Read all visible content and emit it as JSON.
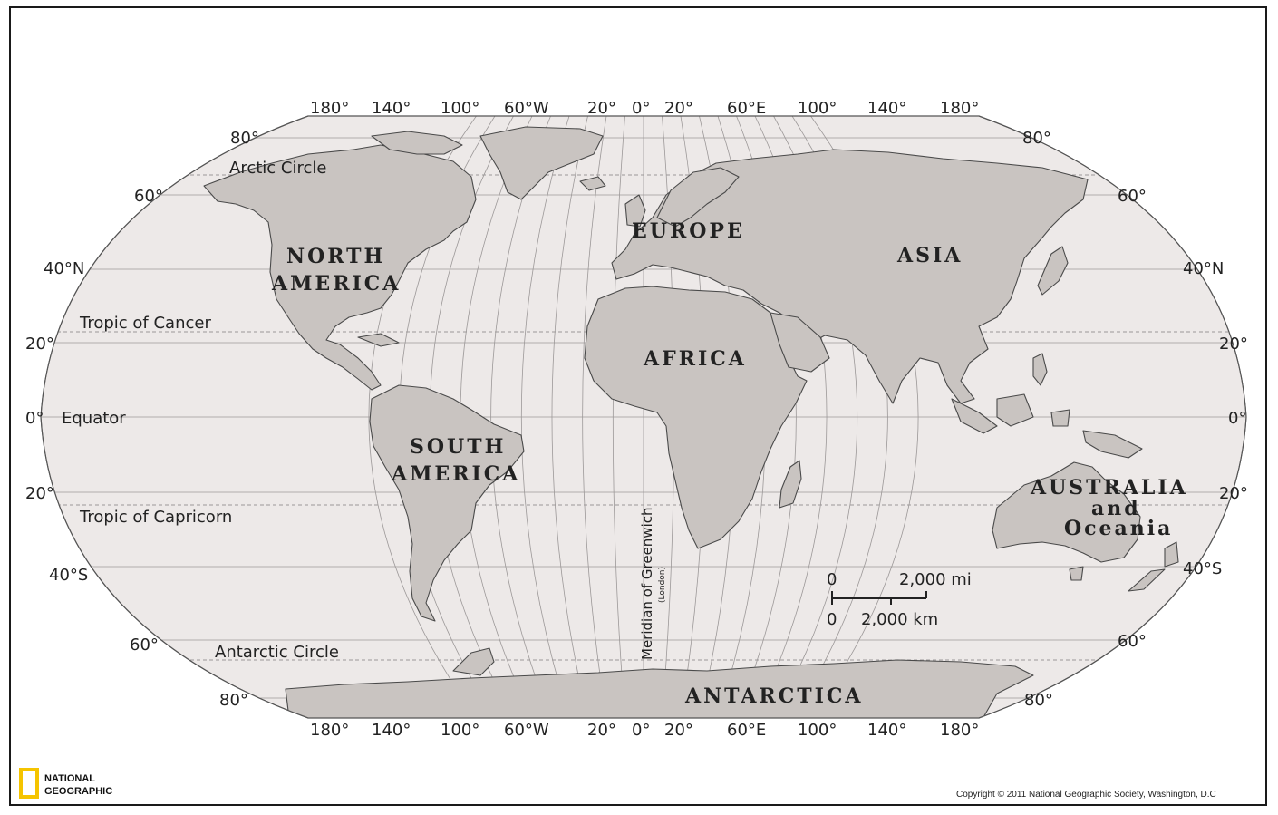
{
  "colors": {
    "ocean": "#ede9e8",
    "land": "#c9c4c1",
    "land_stroke": "#4a4a4a",
    "graticule": "#9c9898",
    "logo_yellow": "#f5c400"
  },
  "longitude_labels": [
    "180°",
    "140°",
    "100°",
    "60°W",
    "20°",
    "0°",
    "20°",
    "60°E",
    "100°",
    "140°",
    "180°"
  ],
  "latitude_labels": {
    "left": [
      "80°",
      "60°",
      "40°N",
      "20°",
      "0°",
      "20°",
      "40°S",
      "60°",
      "80°"
    ],
    "right": [
      "80°",
      "60°",
      "40°N",
      "20°",
      "0°",
      "20°",
      "40°S",
      "60°",
      "80°"
    ]
  },
  "lines": {
    "arctic_circle": "Arctic Circle",
    "tropic_of_cancer": "Tropic of Cancer",
    "equator": "Equator",
    "tropic_of_capricorn": "Tropic of Capricorn",
    "antarctic_circle": "Antarctic Circle",
    "meridian": "Meridian of Greenwich",
    "meridian_sub": "(London)"
  },
  "continents": {
    "north_america": [
      "NORTH",
      "AMERICA"
    ],
    "south_america": [
      "SOUTH",
      "AMERICA"
    ],
    "europe": "EUROPE",
    "asia": "ASIA",
    "africa": "AFRICA",
    "australia": [
      "AUSTRALIA",
      "and",
      "Oceania"
    ],
    "antarctica": "ANTARCTICA"
  },
  "scale_bar": {
    "mi_zero": "0",
    "mi_value": "2,000 mi",
    "km_zero": "0",
    "km_value": "2,000 km"
  },
  "logo": [
    "NATIONAL",
    "GEOGRAPHIC"
  ],
  "copyright": "Copyright © 2011 National Geographic Society, Washington, D.C"
}
